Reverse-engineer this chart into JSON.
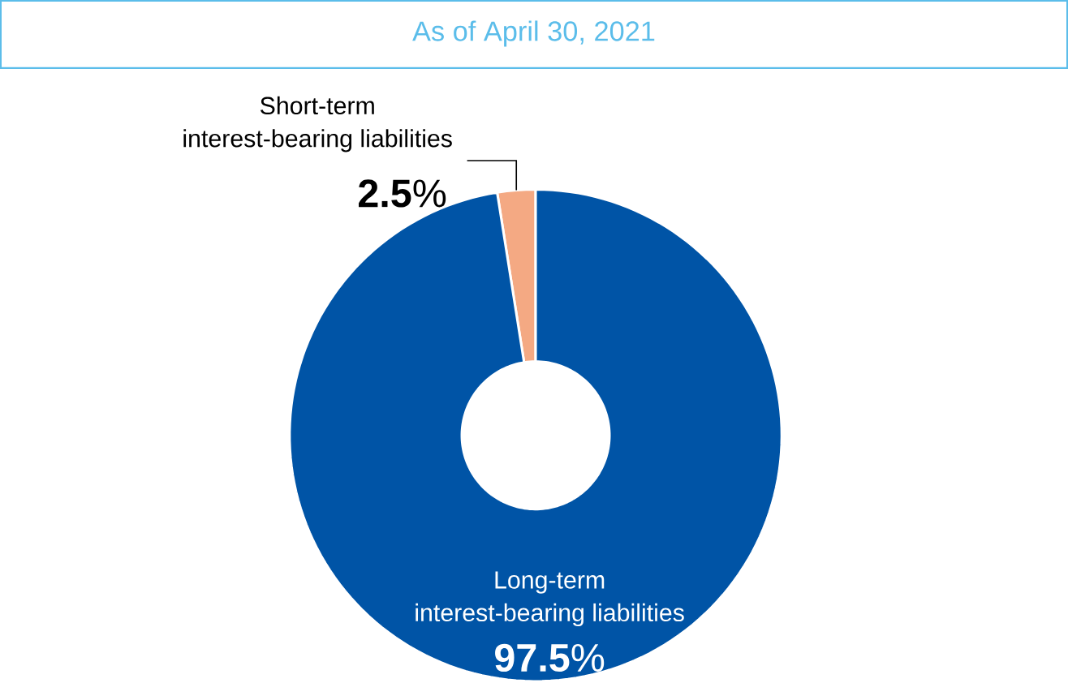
{
  "chart_data": {
    "type": "donut",
    "title": "As of April 30, 2021",
    "categories": [
      "Short-term interest-bearing liabilities",
      "Long-term interest-bearing liabilities"
    ],
    "values": [
      2.5,
      97.5
    ],
    "colors": [
      "#f4a983",
      "#0054a6"
    ],
    "value_labels": [
      "**2.5**%",
      "**97.5**%"
    ]
  }
}
